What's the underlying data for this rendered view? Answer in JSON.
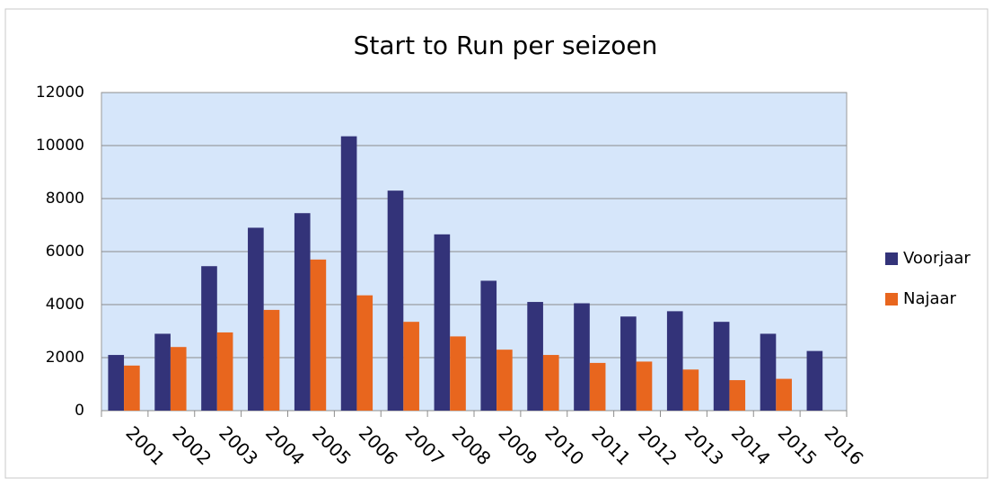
{
  "chart_data": {
    "type": "bar",
    "title": "Start to Run per seizoen",
    "categories": [
      "2001",
      "2002",
      "2003",
      "2004",
      "2005",
      "2006",
      "2007",
      "2008",
      "2009",
      "2010",
      "2011",
      "2012",
      "2013",
      "2014",
      "2015",
      "2016"
    ],
    "series": [
      {
        "name": "Voorjaar",
        "color": "#333379",
        "values": [
          2100,
          2900,
          5450,
          6900,
          7450,
          10350,
          8300,
          6650,
          4900,
          4100,
          4050,
          3550,
          3750,
          3350,
          2900,
          2250
        ]
      },
      {
        "name": "Najaar",
        "color": "#e8661e",
        "values": [
          1700,
          2400,
          2950,
          3800,
          5700,
          4350,
          3350,
          2800,
          2300,
          2100,
          1800,
          1850,
          1550,
          1150,
          1200,
          null
        ]
      }
    ],
    "ylim": [
      0,
      12000
    ],
    "yticks": [
      0,
      2000,
      4000,
      6000,
      8000,
      10000,
      12000
    ],
    "grid": true,
    "legend": "right"
  }
}
